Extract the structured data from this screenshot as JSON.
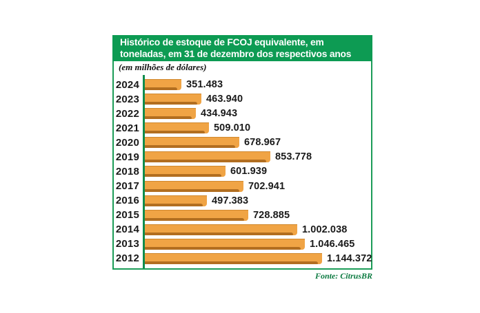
{
  "chart": {
    "title_line1": "Histórico de estoque de FCOJ equivalente, em",
    "title_line2": "toneladas, em 31 de dezembro dos respectivos anos",
    "subtitle": "(em milhões de dólares)",
    "source": "Fonte: CitrusBR",
    "colors": {
      "header_bg": "#0d9b53",
      "border_green": "#1b9c57",
      "axis_green": "#0f8c4d",
      "bar_fill": "#f0a445",
      "bar_edge": "#d0882e",
      "bar_shadow": "#b26e20",
      "source_green": "#0b7a40"
    }
  },
  "chart_data": {
    "type": "bar",
    "orientation": "horizontal",
    "title": "Histórico de estoque de FCOJ equivalente, em toneladas, em 31 de dezembro dos respectivos anos",
    "subtitle": "(em milhões de dólares)",
    "source": "Fonte: CitrusBR",
    "categories": [
      "2024",
      "2023",
      "2022",
      "2021",
      "2020",
      "2019",
      "2018",
      "2017",
      "2016",
      "2015",
      "2014",
      "2013",
      "2012"
    ],
    "values": [
      351483,
      463940,
      434943,
      509010,
      678967,
      853778,
      601939,
      702941,
      497383,
      728885,
      1002038,
      1046465,
      1144372
    ],
    "value_labels": [
      "351.483",
      "463.940",
      "434.943",
      "509.010",
      "678.967",
      "853.778",
      "601.939",
      "702.941",
      "497.383",
      "728.885",
      "1.002.038",
      "1.046.465",
      "1.144.372"
    ],
    "xlim": [
      0,
      1200000
    ],
    "grid": false,
    "legend": false,
    "bar_color": "#f0a445",
    "value_labels_position": "end-of-bar"
  }
}
